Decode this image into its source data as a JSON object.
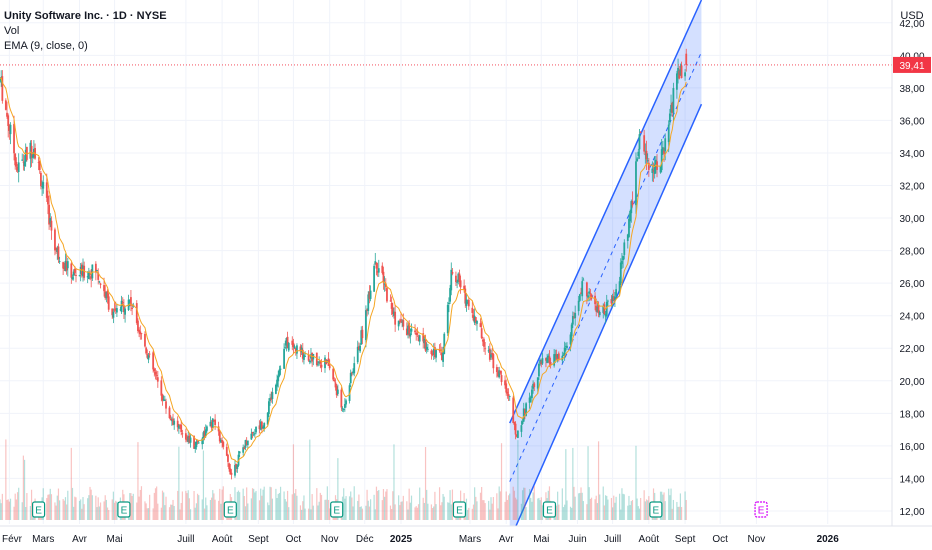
{
  "header": {
    "title": "Unity Software Inc. · 1D · NYSE",
    "indicator_vol": "Vol",
    "indicator_ema": "EMA (9, close, 0)"
  },
  "axis": {
    "currency": "USD",
    "price_ticks": [
      "42,00",
      "40,00",
      "38,00",
      "36,00",
      "34,00",
      "32,00",
      "30,00",
      "28,00",
      "26,00",
      "24,00",
      "22,00",
      "20,00",
      "18,00",
      "16,00",
      "14,00",
      "12,00"
    ],
    "current_price": "39,41",
    "time_ticks": [
      "Févr",
      "Mars",
      "Avr",
      "Mai",
      "Juill",
      "Août",
      "Sept",
      "Oct",
      "Nov",
      "Déc",
      "2025",
      "Mars",
      "Avr",
      "Mai",
      "Juin",
      "Juill",
      "Août",
      "Sept",
      "Oct",
      "Nov",
      "2026"
    ]
  },
  "colors": {
    "up": "#26a69a",
    "down": "#ef5350",
    "ema": "#f5a623",
    "channel_line": "#2962ff",
    "channel_fill": "#2962ff",
    "price_label": "#f23645",
    "earnings_marker": "#089981",
    "earnings_upcoming": "#d500f9",
    "grid": "#f0f3fa"
  },
  "earnings_markers": [
    {
      "label": "E",
      "date": "Feb 2024",
      "upcoming": false
    },
    {
      "label": "E",
      "date": "May 2024",
      "upcoming": false
    },
    {
      "label": "E",
      "date": "Aug 2024",
      "upcoming": false
    },
    {
      "label": "E",
      "date": "Nov 2024",
      "upcoming": false
    },
    {
      "label": "E",
      "date": "Feb 2025",
      "upcoming": false
    },
    {
      "label": "E",
      "date": "May 2025",
      "upcoming": false
    },
    {
      "label": "E",
      "date": "Aug 2025",
      "upcoming": false
    },
    {
      "label": "E",
      "date": "Nov 2025",
      "upcoming": true
    }
  ],
  "chart_data": {
    "type": "candlestick",
    "title": "Unity Software Inc. · 1D · NYSE",
    "ylabel": "USD",
    "ylim": [
      11.2,
      43.4
    ],
    "x_range": [
      "2024-01-24",
      "2026-02-25"
    ],
    "indicators": [
      "Vol",
      "EMA (9, close, 0)"
    ],
    "last_close": 39.41,
    "approx_close_path": [
      {
        "date": "2024-01-24",
        "close": 38.5
      },
      {
        "date": "2024-02-08",
        "close": 33.0
      },
      {
        "date": "2024-02-22",
        "close": 34.5
      },
      {
        "date": "2024-03-12",
        "close": 28.0
      },
      {
        "date": "2024-03-26",
        "close": 26.5
      },
      {
        "date": "2024-04-15",
        "close": 26.8
      },
      {
        "date": "2024-04-30",
        "close": 24.0
      },
      {
        "date": "2024-05-14",
        "close": 25.0
      },
      {
        "date": "2024-05-30",
        "close": 21.5
      },
      {
        "date": "2024-06-17",
        "close": 17.8
      },
      {
        "date": "2024-07-08",
        "close": 16.0
      },
      {
        "date": "2024-07-25",
        "close": 17.5
      },
      {
        "date": "2024-08-09",
        "close": 14.3
      },
      {
        "date": "2024-08-23",
        "close": 16.5
      },
      {
        "date": "2024-09-06",
        "close": 17.5
      },
      {
        "date": "2024-09-25",
        "close": 22.3
      },
      {
        "date": "2024-10-14",
        "close": 21.5
      },
      {
        "date": "2024-10-31",
        "close": 21.0
      },
      {
        "date": "2024-11-12",
        "close": 18.2
      },
      {
        "date": "2024-11-29",
        "close": 23.0
      },
      {
        "date": "2024-12-10",
        "close": 27.5
      },
      {
        "date": "2024-12-27",
        "close": 23.8
      },
      {
        "date": "2025-01-16",
        "close": 22.5
      },
      {
        "date": "2025-02-05",
        "close": 21.5
      },
      {
        "date": "2025-02-14",
        "close": 27.0
      },
      {
        "date": "2025-03-04",
        "close": 24.0
      },
      {
        "date": "2025-03-20",
        "close": 21.3
      },
      {
        "date": "2025-04-04",
        "close": 19.0
      },
      {
        "date": "2025-04-09",
        "close": 16.5
      },
      {
        "date": "2025-04-30",
        "close": 21.0
      },
      {
        "date": "2025-05-20",
        "close": 21.5
      },
      {
        "date": "2025-06-06",
        "close": 26.0
      },
      {
        "date": "2025-06-20",
        "close": 24.0
      },
      {
        "date": "2025-07-03",
        "close": 25.0
      },
      {
        "date": "2025-07-16",
        "close": 30.0
      },
      {
        "date": "2025-07-24",
        "close": 35.0
      },
      {
        "date": "2025-08-04",
        "close": 33.0
      },
      {
        "date": "2025-08-14",
        "close": 34.0
      },
      {
        "date": "2025-08-26",
        "close": 39.0
      },
      {
        "date": "2025-09-02",
        "close": 39.41
      }
    ],
    "regression_channel": {
      "start": "2025-04-04",
      "end": "2025-09-15",
      "upper": [
        17.4,
        43.4
      ],
      "middle": [
        13.8,
        40.2
      ],
      "lower": [
        10.2,
        37.0
      ]
    },
    "volume": "shown as bars at the bottom of the pane, no scale printed"
  }
}
